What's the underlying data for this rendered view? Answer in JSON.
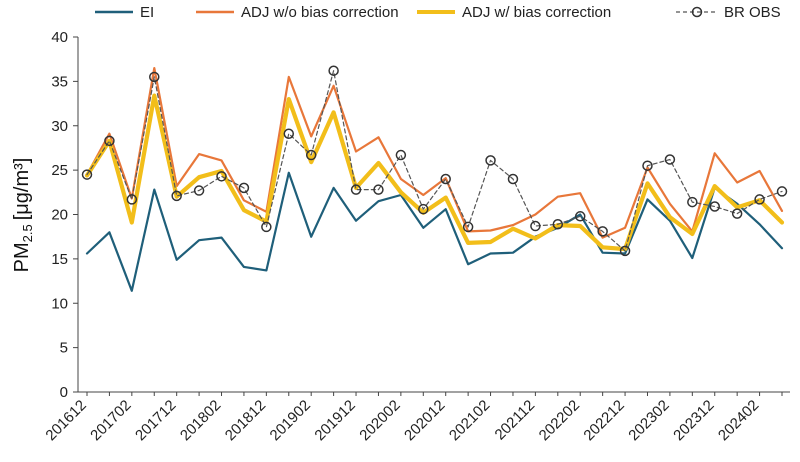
{
  "chart_data": {
    "type": "line",
    "ylabel": "PM2.5 [μg/m³]",
    "ylabel_main": "PM",
    "ylabel_sub": "2.5",
    "ylabel_unit": "[μg/m³]",
    "xlabel": "",
    "ylim": [
      0,
      40
    ],
    "yticks": [
      0,
      5,
      10,
      15,
      20,
      25,
      30,
      35,
      40
    ],
    "grid": false,
    "legend_position": "top",
    "x_tick_labels": [
      "201612",
      "201702",
      "201712",
      "201802",
      "201812",
      "201902",
      "201912",
      "202002",
      "202012",
      "202102",
      "202112",
      "202202",
      "202212",
      "202302",
      "202312",
      "202402"
    ],
    "x": [
      "201612",
      "201701",
      "201702",
      "201703",
      "201712",
      "201801",
      "201802",
      "201803",
      "201812",
      "201901",
      "201902",
      "201903",
      "201912",
      "202001",
      "202002",
      "202003",
      "202012",
      "202101",
      "202102",
      "202103",
      "202112",
      "202201",
      "202202",
      "202203",
      "202212",
      "202301",
      "202302",
      "202303",
      "202312",
      "202401",
      "202402",
      "202403"
    ],
    "series": [
      {
        "name": "EI",
        "color": "#1F5F7A",
        "values": [
          15.6,
          18.0,
          11.4,
          22.8,
          14.9,
          17.1,
          17.4,
          14.1,
          13.7,
          24.7,
          17.5,
          23.0,
          19.3,
          21.5,
          22.2,
          18.5,
          20.6,
          14.4,
          15.6,
          15.7,
          17.5,
          18.5,
          20.0,
          15.7,
          15.6,
          21.7,
          19.3,
          15.1,
          23.0,
          21.2,
          18.9,
          16.2
        ]
      },
      {
        "name": "ADJ w/o bias correction",
        "color": "#E8773A",
        "values": [
          24.5,
          29.1,
          21.8,
          36.5,
          23.2,
          26.8,
          26.1,
          21.6,
          20.3,
          35.5,
          28.8,
          34.5,
          27.1,
          28.7,
          24.0,
          22.2,
          24.1,
          18.1,
          18.2,
          18.8,
          20.0,
          22.0,
          22.4,
          17.4,
          18.5,
          25.3,
          21.2,
          18.1,
          26.9,
          23.6,
          24.9,
          20.4
        ]
      },
      {
        "name": "ADJ w/ bias correction",
        "color": "#F2BE1A",
        "values": [
          24.4,
          28.3,
          19.1,
          33.4,
          22.0,
          24.2,
          24.9,
          20.5,
          19.2,
          33.0,
          25.9,
          31.5,
          23.0,
          25.8,
          22.5,
          20.2,
          21.9,
          16.8,
          16.9,
          18.4,
          17.3,
          18.8,
          18.7,
          16.3,
          16.1,
          23.5,
          19.7,
          17.8,
          23.2,
          20.8,
          21.6,
          19.1
        ]
      },
      {
        "name": "BR OBS",
        "color": "#555555",
        "values": [
          24.5,
          28.3,
          21.7,
          35.5,
          22.1,
          22.7,
          24.3,
          23.0,
          18.6,
          29.1,
          26.7,
          36.2,
          22.8,
          22.8,
          26.7,
          20.6,
          24.0,
          18.6,
          26.1,
          24.0,
          18.7,
          18.9,
          19.8,
          18.1,
          15.9,
          25.5,
          26.2,
          21.4,
          20.9,
          20.1,
          21.7,
          22.6
        ]
      }
    ]
  }
}
